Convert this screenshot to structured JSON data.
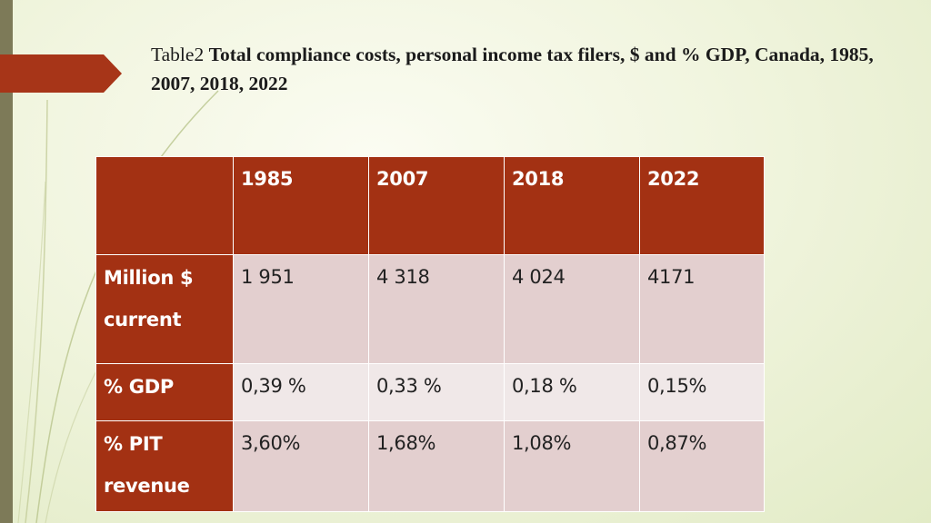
{
  "slide": {
    "title_prefix": "Table2 ",
    "title_bold": "Total compliance costs, personal income tax filers, $ and % GDP, Canada, 1985, 2007, 2018, 2022"
  },
  "table": {
    "corner": "",
    "columns": [
      "1985",
      "2007",
      "2018",
      "2022"
    ],
    "rows": [
      {
        "label": "Million $ current",
        "values": [
          "1 951",
          "4 318",
          "4 024",
          "4171"
        ]
      },
      {
        "label": "% GDP",
        "values": [
          "0,39 %",
          "0,33 %",
          "0,18 %",
          "0,15%"
        ]
      },
      {
        "label": "% PIT revenue",
        "values": [
          "3,60%",
          "1,68%",
          "1,08%",
          "0,87%"
        ]
      }
    ]
  },
  "colors": {
    "accent": "#a33113",
    "row_light": "#f0e8e8",
    "row_mid": "#e3cfcf",
    "side_bar": "#7d7a58"
  }
}
